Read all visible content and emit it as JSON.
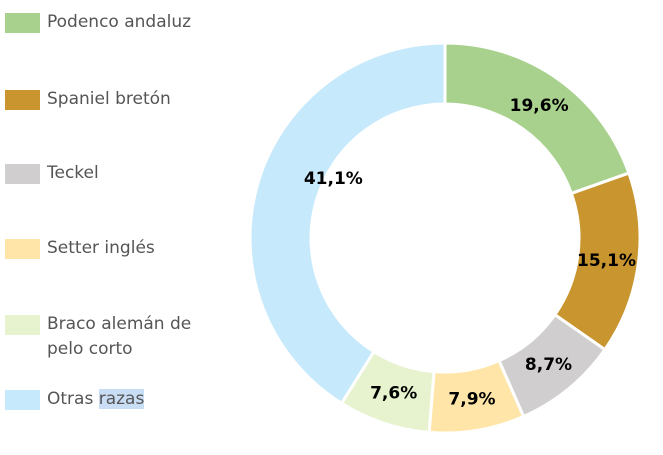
{
  "chart_data": {
    "type": "pie",
    "variant": "donut",
    "title": "",
    "legend_position": "left",
    "categories": [
      "Podenco andaluz",
      "Spaniel bretón",
      "Teckel",
      "Setter inglés",
      "Braco alemán de pelo corto",
      "Otras razas"
    ],
    "values": [
      19.6,
      15.1,
      8.7,
      7.9,
      7.6,
      41.1
    ],
    "labels": [
      "19,6%",
      "15,1%",
      "8,7%",
      "7,9%",
      "7,6%",
      "41,1%"
    ],
    "colors": [
      "#a9d18e",
      "#c9952f",
      "#d0cece",
      "#ffe6a8",
      "#e7f3cf",
      "#c6e9fb"
    ]
  },
  "legend": {
    "last_plain": "Otras ",
    "last_selected": "razas"
  }
}
